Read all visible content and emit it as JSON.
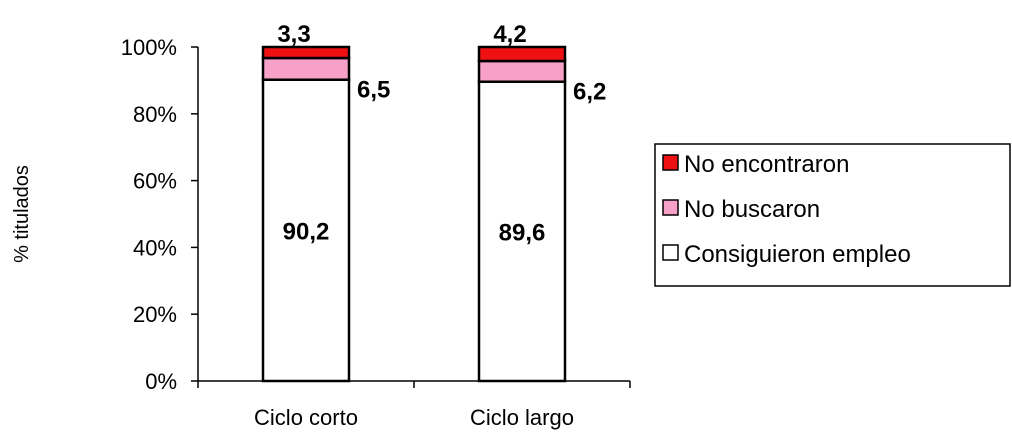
{
  "chart_data": {
    "type": "bar",
    "stacked": true,
    "percent": true,
    "categories": [
      "Ciclo corto",
      "Ciclo largo"
    ],
    "series": [
      {
        "name": "Consiguieron empleo",
        "values": [
          90.2,
          89.6
        ],
        "labels": [
          "90,2",
          "89,6"
        ],
        "color": "#ffffff"
      },
      {
        "name": "No buscaron",
        "values": [
          6.5,
          6.2
        ],
        "labels": [
          "6,5",
          "6,2"
        ],
        "color": "#f7a0c8"
      },
      {
        "name": "No encontraron",
        "values": [
          3.3,
          4.2
        ],
        "labels": [
          "3,3",
          "4,2"
        ],
        "color": "#ee1111"
      }
    ],
    "ylabel": "% titulados",
    "xlabel": "",
    "ylim": [
      0,
      100
    ],
    "yticks": [
      "0%",
      "20%",
      "40%",
      "60%",
      "80%",
      "100%"
    ],
    "legend": {
      "position": "right",
      "order": [
        "No encontraron",
        "No buscaron",
        "Consiguieron empleo"
      ]
    },
    "grid": false
  }
}
